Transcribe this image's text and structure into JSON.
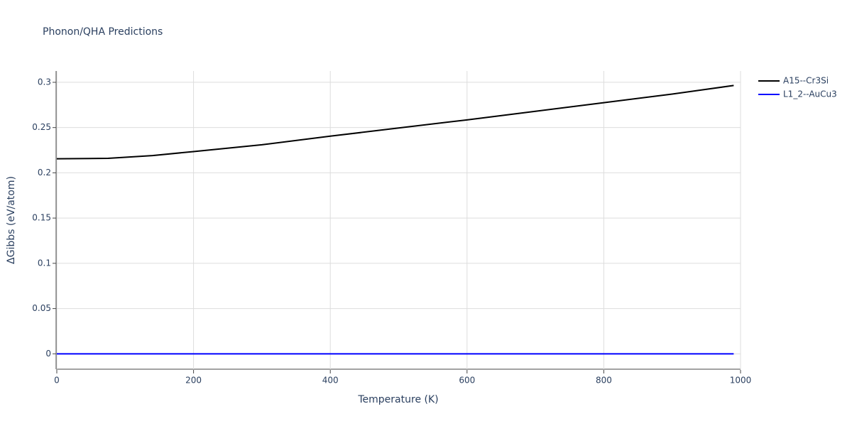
{
  "chart_data": {
    "type": "line",
    "title": "Phonon/QHA Predictions",
    "x_label": "Temperature (K)",
    "y_label": "ΔGibbs (eV/atom)",
    "x": [
      0,
      75,
      140,
      200,
      300,
      400,
      500,
      600,
      700,
      800,
      900,
      990
    ],
    "series": [
      {
        "name": "A15--Cr3Si",
        "color": "#000000",
        "values": [
          0.2155,
          0.216,
          0.219,
          0.2235,
          0.231,
          0.2405,
          0.2495,
          0.2585,
          0.268,
          0.2775,
          0.287,
          0.2965
        ]
      },
      {
        "name": "L1_2--AuCu3",
        "color": "#0000ff",
        "values": [
          0,
          0,
          0,
          0,
          0,
          0,
          0,
          0,
          0,
          0,
          0,
          0
        ]
      }
    ],
    "xlim": [
      0,
      1000
    ],
    "xticks": [
      0,
      200,
      400,
      600,
      800,
      1000
    ],
    "ylim": [
      -0.017,
      0.3125
    ],
    "yticks": [
      0,
      0.05,
      0.1,
      0.15,
      0.2,
      0.25,
      0.3
    ],
    "grid": true,
    "legend": "top-right"
  }
}
